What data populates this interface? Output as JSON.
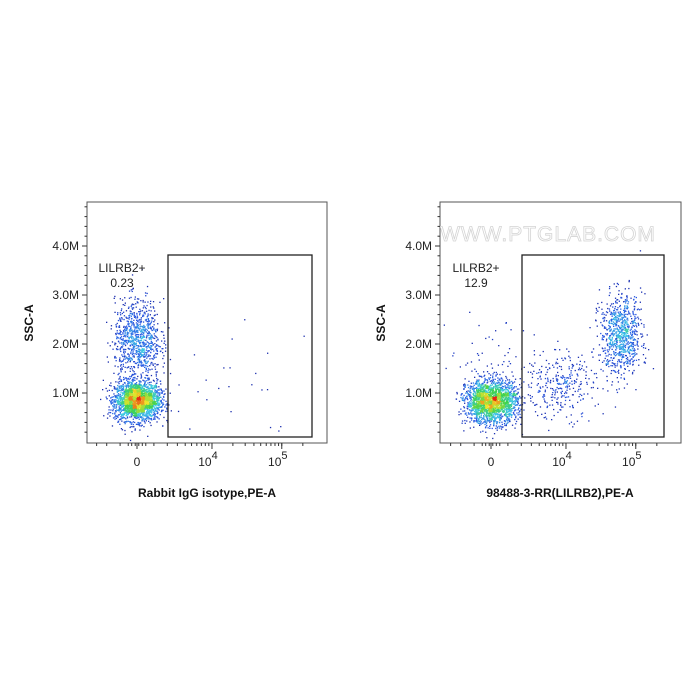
{
  "watermark": "WWW.PTGLAB.COM",
  "chart_data": [
    {
      "type": "scatter",
      "subtype": "flow-cytometry-density-dot-plot",
      "xlabel": "Rabbit IgG isotype,PE-A",
      "ylabel": "SSC-A",
      "x_scale": "biexponential",
      "x_ticks": [
        {
          "value": 0,
          "label": "0"
        },
        {
          "value": 10000,
          "base": "10",
          "exp": "4"
        },
        {
          "value": 100000,
          "base": "10",
          "exp": "5"
        }
      ],
      "y_ticks": [
        {
          "value": 1000000,
          "label": "1.0M"
        },
        {
          "value": 2000000,
          "label": "2.0M"
        },
        {
          "value": 3000000,
          "label": "3.0M"
        },
        {
          "value": 4000000,
          "label": "4.0M"
        }
      ],
      "ylim": [
        0,
        4900000
      ],
      "gate": {
        "name": "LILRB2+",
        "percent": "0.23",
        "x_range": [
          1500,
          200000
        ],
        "y_range": [
          150000,
          3850000
        ]
      },
      "populations": [
        {
          "x_center": 0,
          "x_spread": 700,
          "y_center": 850000,
          "y_spread": 200000,
          "events": 2200
        },
        {
          "x_center": 0,
          "x_spread": 700,
          "y_center": 2100000,
          "y_spread": 400000,
          "events": 900
        },
        {
          "x_center": 10000,
          "x_spread": 30000,
          "y_center": 1100000,
          "y_spread": 600000,
          "events": 30
        }
      ]
    },
    {
      "type": "scatter",
      "subtype": "flow-cytometry-density-dot-plot",
      "xlabel": "98488-3-RR(LILRB2),PE-A",
      "ylabel": "SSC-A",
      "x_scale": "biexponential",
      "x_ticks": [
        {
          "value": 0,
          "label": "0"
        },
        {
          "value": 10000,
          "base": "10",
          "exp": "4"
        },
        {
          "value": 100000,
          "base": "10",
          "exp": "5"
        }
      ],
      "y_ticks": [
        {
          "value": 1000000,
          "label": "1.0M"
        },
        {
          "value": 2000000,
          "label": "2.0M"
        },
        {
          "value": 3000000,
          "label": "3.0M"
        },
        {
          "value": 4000000,
          "label": "4.0M"
        }
      ],
      "ylim": [
        0,
        4900000
      ],
      "gate": {
        "name": "LILRB2+",
        "percent": "12.9",
        "x_range": [
          1500,
          200000
        ],
        "y_range": [
          150000,
          3850000
        ]
      },
      "populations": [
        {
          "x_center": 0,
          "x_spread": 800,
          "y_center": 830000,
          "y_spread": 220000,
          "events": 2000
        },
        {
          "x_center": 60000,
          "x_spread": 25000,
          "y_center": 2200000,
          "y_spread": 400000,
          "events": 800
        },
        {
          "x_center": 8000,
          "x_spread": 6000,
          "y_center": 1200000,
          "y_spread": 350000,
          "events": 300
        },
        {
          "x_center": 0,
          "x_spread": 1500,
          "y_center": 1600000,
          "y_spread": 500000,
          "events": 60
        }
      ]
    }
  ]
}
